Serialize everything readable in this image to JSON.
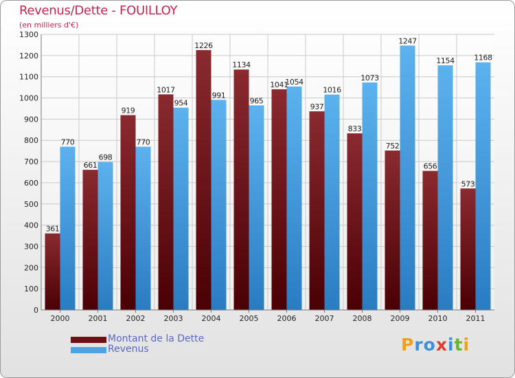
{
  "chart_data": {
    "type": "bar",
    "title": "Revenus/Dette - FOUILLOY",
    "subtitle": "(en milliers d'€)",
    "categories": [
      "2000",
      "2001",
      "2002",
      "2003",
      "2004",
      "2005",
      "2006",
      "2007",
      "2008",
      "2009",
      "2010",
      "2011"
    ],
    "series": [
      {
        "name": "Montant de la Dette",
        "color": "#6e0f14",
        "values": [
          361,
          661,
          919,
          1017,
          1226,
          1134,
          1041,
          937,
          833,
          752,
          656,
          573
        ]
      },
      {
        "name": "Revenus",
        "color": "#4aa3e6",
        "values": [
          770,
          698,
          770,
          954,
          991,
          965,
          1054,
          1016,
          1073,
          1247,
          1154,
          1168
        ]
      }
    ],
    "yticks": [
      0,
      100,
      200,
      300,
      400,
      500,
      600,
      700,
      800,
      900,
      1000,
      1100,
      1200,
      1300
    ],
    "ylim": [
      0,
      1300
    ],
    "grid": true,
    "legend": "bottom-left"
  },
  "logo": {
    "text": "Proxiti",
    "letters": [
      {
        "ch": "P",
        "color": "#f0a020"
      },
      {
        "ch": "r",
        "color": "#3d8fd6"
      },
      {
        "ch": "o",
        "color": "#3d8fd6"
      },
      {
        "ch": "x",
        "color": "#e23a2e"
      },
      {
        "ch": "i",
        "color": "#3d8fd6"
      },
      {
        "ch": "t",
        "color": "#6bb536"
      },
      {
        "ch": "i",
        "color": "#f0a020"
      }
    ]
  }
}
